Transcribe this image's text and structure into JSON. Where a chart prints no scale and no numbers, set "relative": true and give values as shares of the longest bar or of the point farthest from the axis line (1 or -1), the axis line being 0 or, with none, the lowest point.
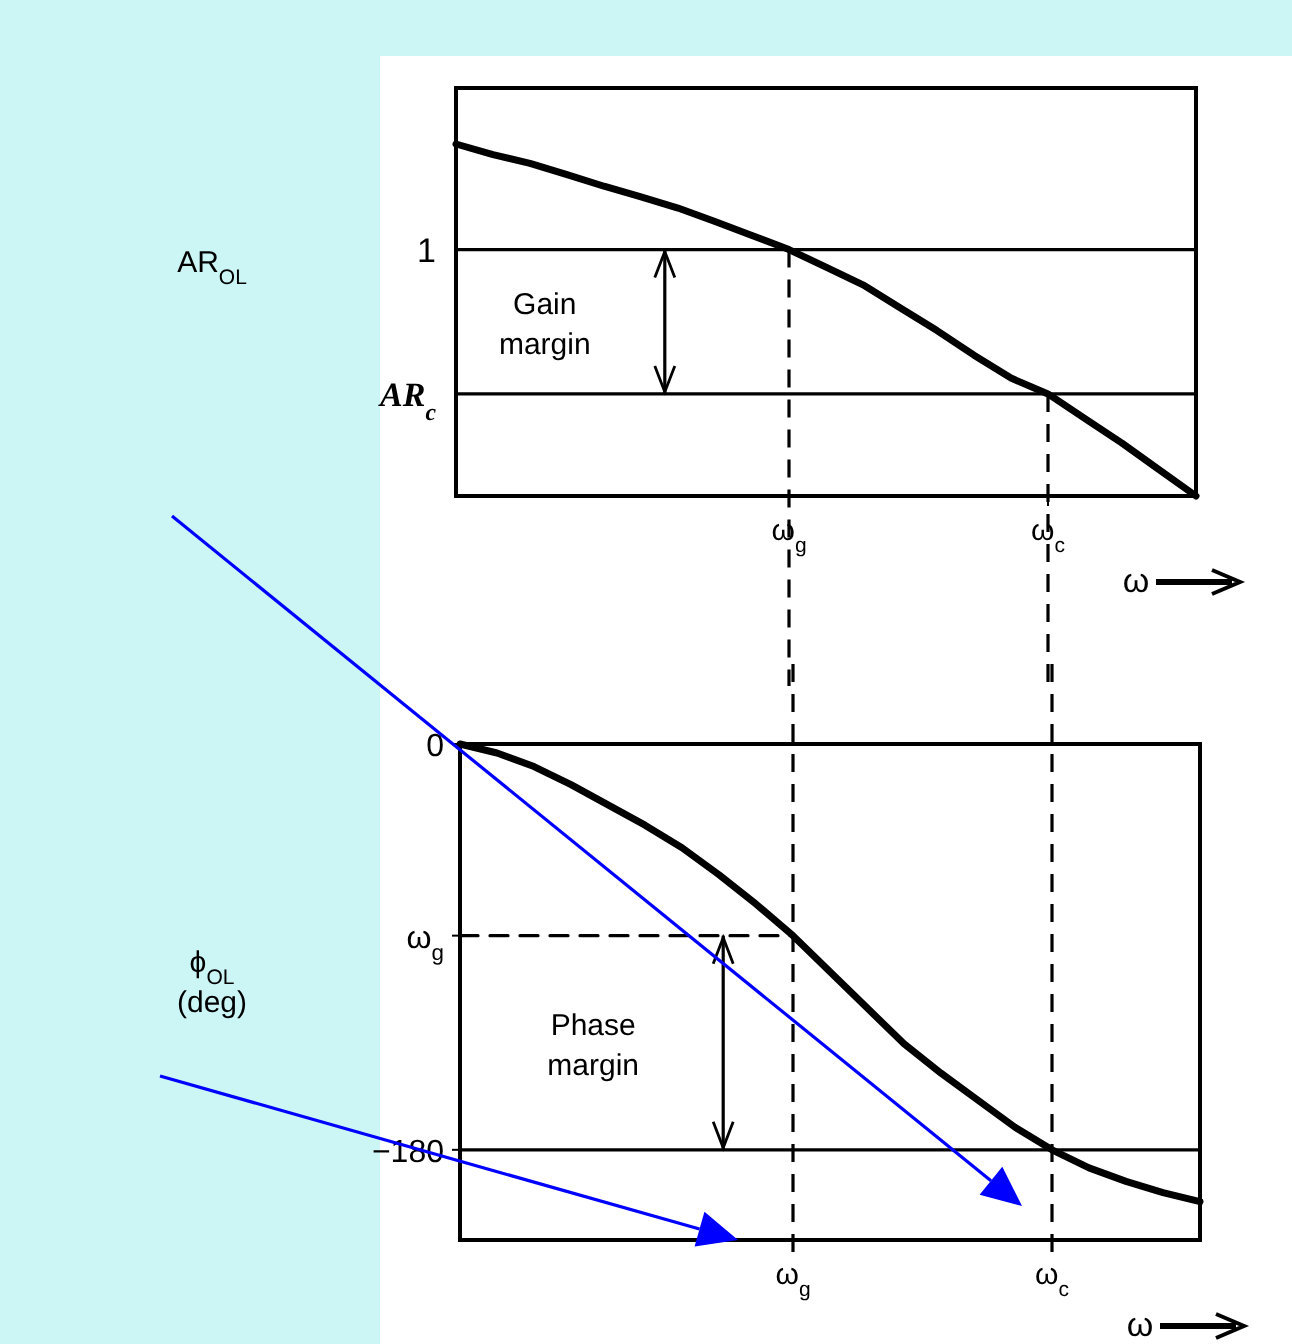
{
  "chart_data": [
    {
      "type": "line",
      "relative": true,
      "ylabel": "AR$_{OL}$",
      "xlabel": "ω",
      "categories": [
        null,
        null,
        null,
        null,
        null,
        null,
        null,
        null,
        null,
        "ω$_{g}$",
        null,
        null,
        null,
        null,
        null,
        null,
        "ω$_{c}$",
        null,
        null,
        null,
        null
      ],
      "line_style": "solid",
      "grid": "x",
      "series": [
        {
          "color": "#000000",
          "values": [
            1,
            0.97,
            0.945,
            0.913,
            0.88,
            0.85,
            0.818,
            0.78,
            0.74,
            0.7,
            0.65,
            0.6,
            0.535,
            0.47,
            0.4,
            0.335,
            0.29,
            0.22,
            0.15,
            0.075,
            0
          ]
        }
      ],
      "ref_lines": [
        {
          "axis": "y",
          "value": 0.7,
          "label": "1"
        },
        {
          "axis": "y",
          "value": 0.29,
          "label": "AR$_{c}$"
        }
      ],
      "annotations": [
        "Gain margin"
      ]
    },
    {
      "type": "line",
      "ylabel": "ϕ$_{OL}$ (deg)",
      "xlabel": "ω",
      "ylim": [
        -220,
        0
      ],
      "categories": [
        null,
        null,
        null,
        null,
        null,
        null,
        null,
        null,
        null,
        "ω$_{g}$",
        null,
        null,
        null,
        null,
        null,
        null,
        "ω$_{c}$",
        null,
        null,
        null,
        null
      ],
      "yticks": [
        0,
        {
          "value": -85,
          "label": "ω$_{g}$"
        },
        {
          "value": -180,
          "label": "−180"
        }
      ],
      "line_style": "solid",
      "grid": "x",
      "series": [
        {
          "color": "#000000",
          "values": [
            0,
            -4,
            -10,
            -18,
            -27,
            -36,
            -46,
            -58,
            -71,
            -85,
            -101,
            -117,
            -133,
            -146,
            -158,
            -170,
            -180,
            -188,
            -194,
            -199,
            -203
          ]
        },
        {
          "color": "#000000",
          "line_style": "dashed",
          "values": [
            -85,
            -85,
            -85,
            -85,
            -85,
            -85,
            -85,
            -85,
            -85,
            -85,
            null,
            null,
            null,
            null,
            null,
            null,
            null,
            null,
            null,
            null,
            null
          ]
        }
      ],
      "ref_lines": [
        {
          "axis": "y",
          "value": -180
        }
      ],
      "annotations": [
        "Phase margin"
      ]
    }
  ]
}
